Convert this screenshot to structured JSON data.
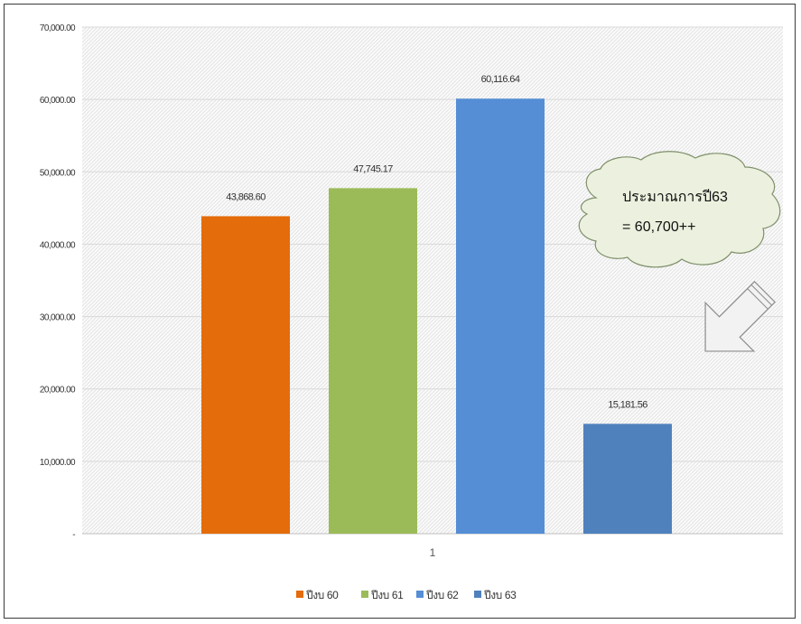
{
  "chart_data": {
    "type": "bar",
    "categories": [
      "1"
    ],
    "series": [
      {
        "name": "ปีงบ 60",
        "values": [
          43868.6
        ],
        "label": "43,868.60",
        "color": "#e46c0a"
      },
      {
        "name": "ปีงบ 61",
        "values": [
          47745.17
        ],
        "label": "47,745.17",
        "color": "#9bbb59"
      },
      {
        "name": "ปีงบ 62",
        "values": [
          60116.64
        ],
        "label": "60,116.64",
        "color": "#558ed5"
      },
      {
        "name": "ปีงบ 63",
        "values": [
          15181.56
        ],
        "label": "15,181.56",
        "color": "#4f81bd"
      }
    ],
    "yticks": [
      {
        "value": 0,
        "label": "-"
      },
      {
        "value": 10000,
        "label": "10,000.00"
      },
      {
        "value": 20000,
        "label": "20,000.00"
      },
      {
        "value": 30000,
        "label": "30,000.00"
      },
      {
        "value": 40000,
        "label": "40,000.00"
      },
      {
        "value": 50000,
        "label": "50,000.00"
      },
      {
        "value": 60000,
        "label": "60,000.00"
      },
      {
        "value": 70000,
        "label": "70,000.00"
      }
    ],
    "ylim": [
      0,
      70000
    ],
    "grid": true,
    "legend_position": "bottom",
    "title": "",
    "xlabel": "",
    "ylabel": ""
  },
  "annotation": {
    "line1": "ประมาณการปี63",
    "line2": "= 60,700++",
    "cloud_color": "#ebf1de",
    "cloud_stroke": "#7f8f6a",
    "arrow_color": "#f2f2f2",
    "arrow_stroke": "#8c8c8c",
    "arrow_direction": "down-left"
  }
}
